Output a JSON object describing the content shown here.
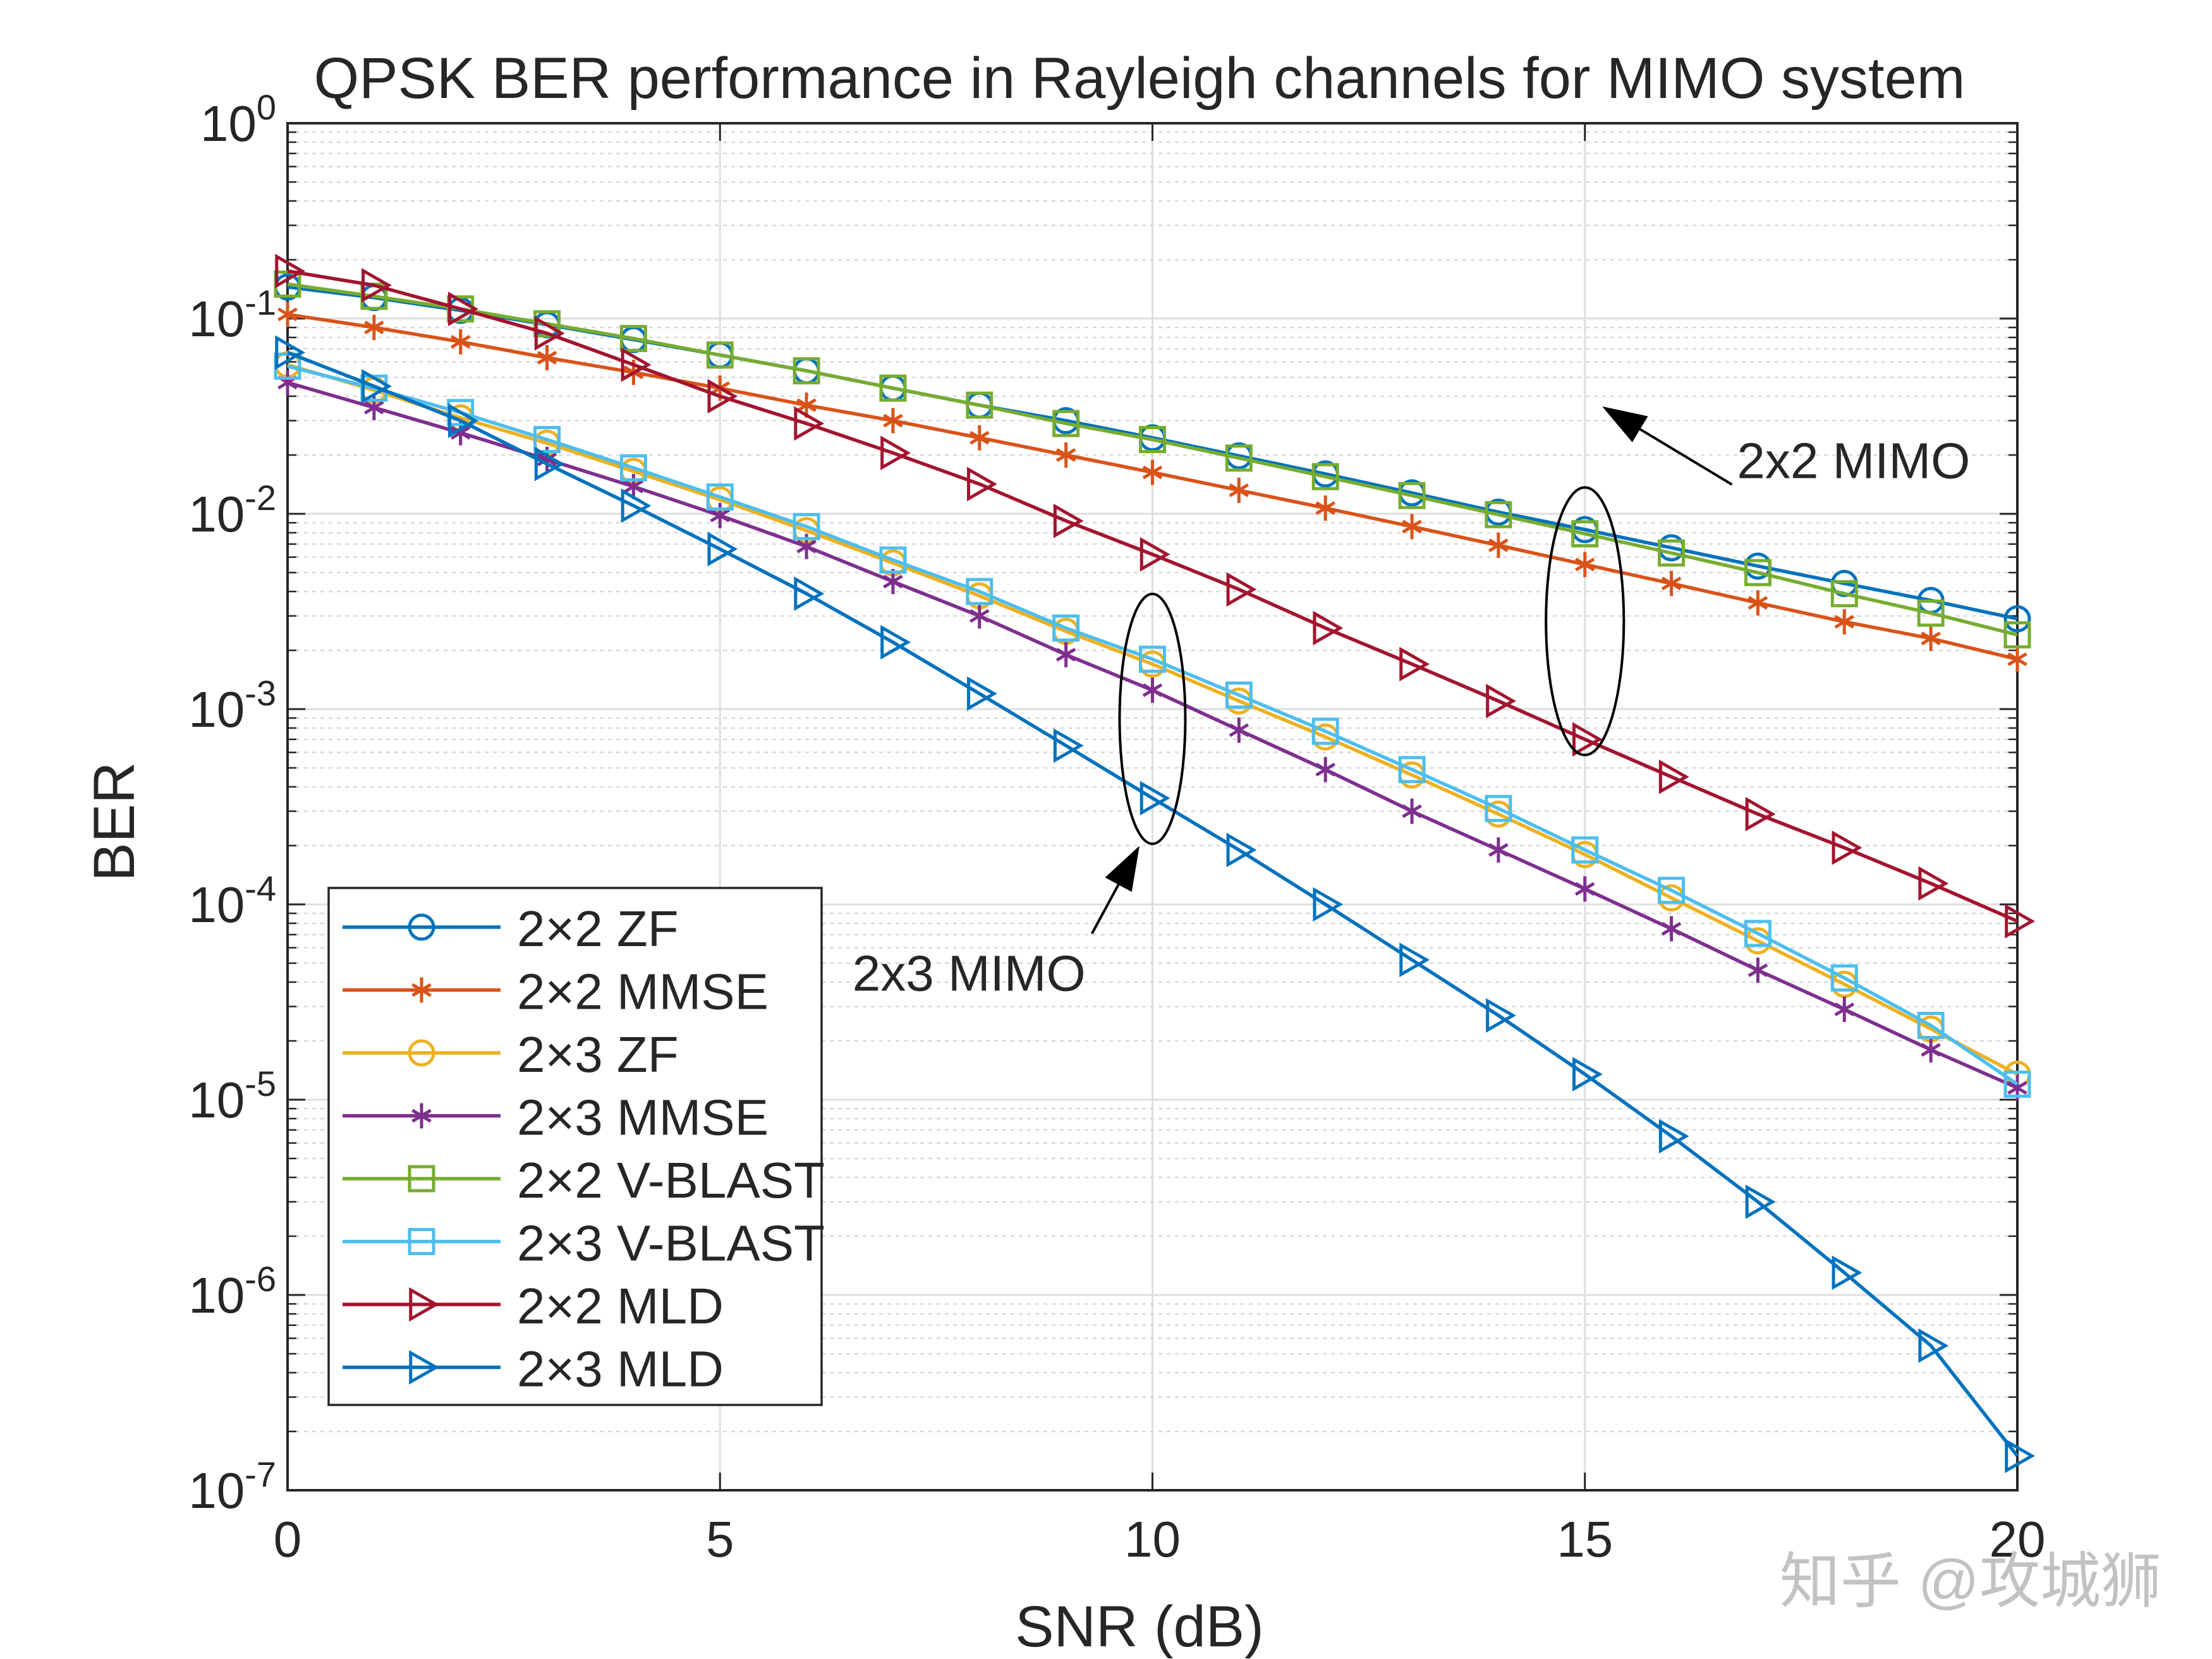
{
  "chart_data": {
    "type": "line",
    "title": "QPSK BER performance in Rayleigh channels for MIMO system",
    "xlabel": "SNR (dB)",
    "ylabel": "BER",
    "xlim": [
      0,
      20
    ],
    "ylim_exponents": [
      -7,
      0
    ],
    "yscale": "log",
    "grid": true,
    "x": [
      0,
      1,
      2,
      3,
      4,
      5,
      6,
      7,
      8,
      9,
      10,
      11,
      12,
      13,
      14,
      15,
      16,
      17,
      18,
      19,
      20
    ],
    "x_ticks": [
      {
        "value": 0,
        "label": "0"
      },
      {
        "value": 5,
        "label": "5"
      },
      {
        "value": 10,
        "label": "10"
      },
      {
        "value": 15,
        "label": "15"
      },
      {
        "value": 20,
        "label": "20"
      }
    ],
    "y_ticks": [
      {
        "exp": 0,
        "base": "10",
        "sup": "0"
      },
      {
        "exp": -1,
        "base": "10",
        "sup": "-1"
      },
      {
        "exp": -2,
        "base": "10",
        "sup": "-2"
      },
      {
        "exp": -3,
        "base": "10",
        "sup": "-3"
      },
      {
        "exp": -4,
        "base": "10",
        "sup": "-4"
      },
      {
        "exp": -5,
        "base": "10",
        "sup": "-5"
      },
      {
        "exp": -6,
        "base": "10",
        "sup": "-6"
      },
      {
        "exp": -7,
        "base": "10",
        "sup": "-7"
      }
    ],
    "legend_position": "lower-left",
    "series": [
      {
        "name": "2×2 ZF",
        "color": "#0072BD",
        "marker": "circle",
        "values": [
          0.145,
          0.128,
          0.11,
          0.093,
          0.078,
          0.065,
          0.054,
          0.044,
          0.036,
          0.03,
          0.0245,
          0.0198,
          0.016,
          0.0128,
          0.0102,
          0.0083,
          0.0067,
          0.0054,
          0.0044,
          0.0036,
          0.0029
        ]
      },
      {
        "name": "2×2 MMSE",
        "color": "#D95319",
        "marker": "asterisk",
        "values": [
          0.105,
          0.09,
          0.076,
          0.063,
          0.053,
          0.044,
          0.036,
          0.03,
          0.0245,
          0.02,
          0.0163,
          0.0132,
          0.0107,
          0.0086,
          0.0069,
          0.0055,
          0.0044,
          0.0035,
          0.0028,
          0.0023,
          0.0018
        ]
      },
      {
        "name": "2×3 ZF",
        "color": "#EDB120",
        "marker": "circle",
        "values": [
          0.058,
          0.043,
          0.031,
          0.023,
          0.0165,
          0.0118,
          0.0082,
          0.0056,
          0.0038,
          0.0025,
          0.0017,
          0.0011,
          0.00072,
          0.00046,
          0.00029,
          0.00018,
          0.000108,
          6.5e-05,
          3.9e-05,
          2.3e-05,
          1.35e-05
        ]
      },
      {
        "name": "2×3 MMSE",
        "color": "#7E2F8E",
        "marker": "asterisk",
        "values": [
          0.047,
          0.035,
          0.026,
          0.019,
          0.0138,
          0.0098,
          0.0068,
          0.0045,
          0.003,
          0.0019,
          0.00125,
          0.00078,
          0.00049,
          0.0003,
          0.00019,
          0.00012,
          7.5e-05,
          4.6e-05,
          2.9e-05,
          1.8e-05,
          1.15e-05
        ]
      },
      {
        "name": "2×2 V-BLAST",
        "color": "#77AC30",
        "marker": "square",
        "values": [
          0.15,
          0.13,
          0.112,
          0.094,
          0.079,
          0.065,
          0.054,
          0.044,
          0.036,
          0.029,
          0.024,
          0.0193,
          0.0155,
          0.0124,
          0.0099,
          0.0079,
          0.0063,
          0.005,
          0.0039,
          0.0031,
          0.0024
        ]
      },
      {
        "name": "2×3 V-BLAST",
        "color": "#4DBEEE",
        "marker": "square",
        "values": [
          0.057,
          0.044,
          0.033,
          0.024,
          0.0172,
          0.0122,
          0.0086,
          0.0058,
          0.004,
          0.0026,
          0.0018,
          0.00118,
          0.00077,
          0.00049,
          0.00031,
          0.00019,
          0.000118,
          7.1e-05,
          4.2e-05,
          2.4e-05,
          1.2e-05
        ]
      },
      {
        "name": "2×2 MLD",
        "color": "#A2142F",
        "marker": "triangle-right",
        "values": [
          0.175,
          0.148,
          0.112,
          0.084,
          0.058,
          0.04,
          0.029,
          0.0205,
          0.0142,
          0.0092,
          0.0062,
          0.0041,
          0.0026,
          0.0017,
          0.0011,
          0.0007,
          0.00045,
          0.00029,
          0.000195,
          0.000128,
          8.2e-05
        ]
      },
      {
        "name": "2×3 MLD",
        "color": "#0072BD",
        "marker": "triangle-right",
        "values": [
          0.067,
          0.045,
          0.03,
          0.018,
          0.011,
          0.0066,
          0.0039,
          0.0022,
          0.0012,
          0.00065,
          0.00035,
          0.00019,
          0.0001,
          5.2e-05,
          2.7e-05,
          1.35e-05,
          6.5e-06,
          3e-06,
          1.3e-06,
          5.5e-07,
          1.5e-07
        ]
      }
    ],
    "annotations": [
      {
        "id": "mimo-2x2",
        "text": "2x2 MIMO",
        "x": 15,
        "y_center_exp": -2.55,
        "rx_snr": 0.45,
        "ry_decades": 1.37,
        "arrow_from": [
          16.7,
          -1.85
        ],
        "arrow_to": [
          15.2,
          -1.45
        ]
      },
      {
        "id": "mimo-2x3",
        "text": "2x3 MIMO",
        "x": 10,
        "y_center_exp": -3.05,
        "rx_snr": 0.38,
        "ry_decades": 1.28,
        "arrow_from": [
          9.3,
          -4.15
        ],
        "arrow_to": [
          9.85,
          -3.7
        ]
      }
    ]
  },
  "watermark": "知乎 @攻城狮"
}
